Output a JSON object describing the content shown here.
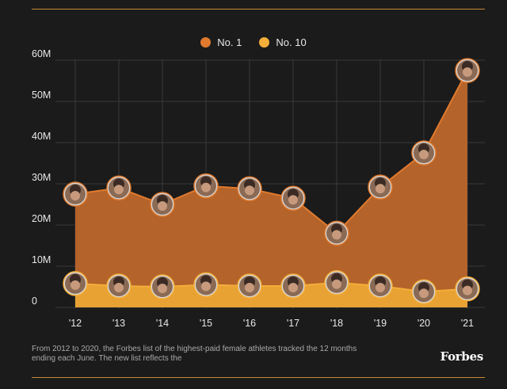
{
  "legend": {
    "no1_label": "No. 1",
    "no10_label": "No. 10"
  },
  "colors": {
    "no1": "#e07a2e",
    "no1_area": "#b4632a",
    "no10": "#f3ae3a",
    "no10_area": "#e8a233",
    "grid": "#3a3a3a",
    "background": "#1b1b1b"
  },
  "chart_data": {
    "type": "area",
    "title": "",
    "xlabel": "",
    "ylabel": "",
    "ylim": [
      0,
      60
    ],
    "y_ticks": [
      "0",
      "10M",
      "20M",
      "30M",
      "40M",
      "50M",
      "60M"
    ],
    "y_tick_values": [
      0,
      10,
      20,
      30,
      40,
      50,
      60
    ],
    "categories": [
      "'12",
      "'13",
      "'14",
      "'15",
      "'16",
      "'17",
      "'18",
      "'19",
      "'20",
      "'21"
    ],
    "series": [
      {
        "name": "No. 1",
        "values": [
          27.5,
          29,
          25,
          29.5,
          28.8,
          26.5,
          18,
          29.2,
          37.5,
          57.5
        ]
      },
      {
        "name": "No. 10",
        "values": [
          5.8,
          5.2,
          5.0,
          5.5,
          5.2,
          5.2,
          6.0,
          5.2,
          3.8,
          4.5
        ]
      }
    ],
    "grid": true
  },
  "footnote": "From 2012 to 2020, the Forbes list of the highest-paid female athletes tracked the 12 months ending each June. The new list reflects the",
  "brand": "Forbes"
}
